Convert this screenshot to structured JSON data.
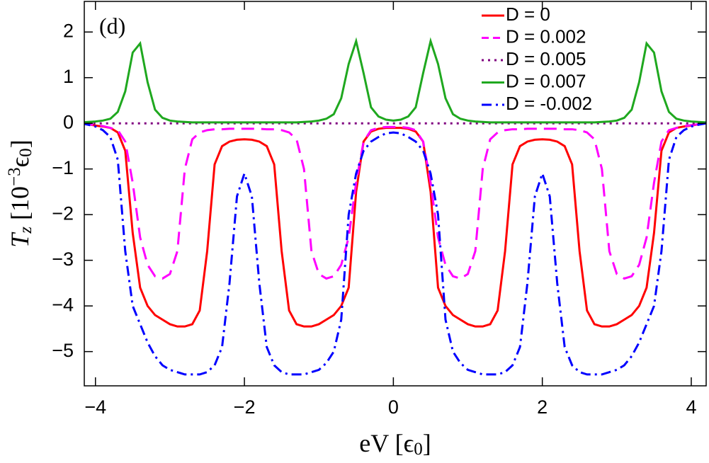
{
  "chart_data": {
    "type": "line",
    "annotation": "(d)",
    "xlabel": [
      {
        "text": "eV [ϵ"
      },
      {
        "text": "0",
        "script": "sub"
      },
      {
        "text": "]"
      }
    ],
    "ylabel": [
      {
        "text": "T",
        "italic": true
      },
      {
        "text": "z",
        "script": "sub",
        "italic": true
      },
      {
        "text": " [10"
      },
      {
        "text": "−3",
        "script": "sup"
      },
      {
        "text": "ϵ"
      },
      {
        "text": "0",
        "script": "sub"
      },
      {
        "text": "]"
      }
    ],
    "xlim": [
      -4.15,
      4.2
    ],
    "ylim": [
      -5.75,
      2.67
    ],
    "xticks": [
      {
        "value": -4,
        "label": "−4"
      },
      {
        "value": -2,
        "label": "−2"
      },
      0,
      2,
      4
    ],
    "yticks": [
      {
        "value": -5,
        "label": "−5"
      },
      {
        "value": -4,
        "label": "−4"
      },
      {
        "value": -3,
        "label": "−3"
      },
      {
        "value": -2,
        "label": "−2"
      },
      {
        "value": -1,
        "label": "−1"
      },
      0,
      1,
      2
    ],
    "legend": "upper right",
    "x": [
      -4.2,
      -4.1,
      -4.0,
      -3.9,
      -3.8,
      -3.7,
      -3.6,
      -3.5,
      -3.4,
      -3.3,
      -3.2,
      -3.1,
      -3.0,
      -2.9,
      -2.8,
      -2.7,
      -2.6,
      -2.5,
      -2.4,
      -2.3,
      -2.2,
      -2.1,
      -2.0,
      -1.9,
      -1.8,
      -1.7,
      -1.6,
      -1.5,
      -1.4,
      -1.3,
      -1.2,
      -1.1,
      -1.0,
      -0.9,
      -0.8,
      -0.7,
      -0.6,
      -0.5,
      -0.4,
      -0.3,
      -0.2,
      -0.1,
      0,
      0.1,
      0.2,
      0.3,
      0.4,
      0.5,
      0.6,
      0.7,
      0.8,
      0.9,
      1.0,
      1.1,
      1.2,
      1.3,
      1.4,
      1.5,
      1.6,
      1.7,
      1.8,
      1.9,
      2.0,
      2.1,
      2.2,
      2.3,
      2.4,
      2.5,
      2.6,
      2.7,
      2.8,
      2.9,
      3.0,
      3.1,
      3.2,
      3.3,
      3.4,
      3.5,
      3.6,
      3.7,
      3.8,
      3.9,
      4.0,
      4.1,
      4.2
    ],
    "series": [
      {
        "name": "D = 0",
        "color": "#ff0000",
        "style": "solid",
        "values": [
          0,
          -0.02,
          -0.05,
          -0.07,
          -0.1,
          -0.2,
          -0.6,
          -2.4,
          -3.6,
          -4.0,
          -4.2,
          -4.3,
          -4.4,
          -4.45,
          -4.45,
          -4.4,
          -4.1,
          -2.8,
          -0.9,
          -0.5,
          -0.4,
          -0.36,
          -0.35,
          -0.36,
          -0.4,
          -0.5,
          -0.9,
          -2.8,
          -4.1,
          -4.4,
          -4.45,
          -4.45,
          -4.4,
          -4.3,
          -4.2,
          -4.0,
          -3.6,
          -1.5,
          -0.4,
          -0.18,
          -0.12,
          -0.1,
          -0.1,
          -0.1,
          -0.12,
          -0.18,
          -0.4,
          -1.5,
          -3.6,
          -4.0,
          -4.2,
          -4.3,
          -4.4,
          -4.45,
          -4.45,
          -4.4,
          -4.1,
          -2.8,
          -0.9,
          -0.5,
          -0.4,
          -0.36,
          -0.35,
          -0.36,
          -0.4,
          -0.5,
          -0.9,
          -2.8,
          -4.1,
          -4.4,
          -4.45,
          -4.45,
          -4.4,
          -4.3,
          -4.2,
          -4.0,
          -3.6,
          -2.4,
          -0.6,
          -0.2,
          -0.1,
          -0.07,
          -0.05,
          -0.02,
          0
        ]
      },
      {
        "name": "D = 0.002",
        "color": "#ff00ff",
        "style": "dashed",
        "values": [
          0,
          -0.02,
          -0.04,
          -0.06,
          -0.1,
          -0.15,
          -0.4,
          -1.3,
          -2.5,
          -3.1,
          -3.35,
          -3.4,
          -3.3,
          -2.8,
          -1.0,
          -0.35,
          -0.2,
          -0.15,
          -0.13,
          -0.13,
          -0.12,
          -0.12,
          -0.12,
          -0.12,
          -0.12,
          -0.13,
          -0.13,
          -0.15,
          -0.2,
          -0.35,
          -1.0,
          -2.8,
          -3.3,
          -3.4,
          -3.35,
          -3.1,
          -2.5,
          -1.3,
          -0.4,
          -0.15,
          -0.1,
          -0.08,
          -0.08,
          -0.08,
          -0.1,
          -0.15,
          -0.4,
          -1.3,
          -2.5,
          -3.1,
          -3.35,
          -3.4,
          -3.3,
          -2.8,
          -1.0,
          -0.35,
          -0.2,
          -0.15,
          -0.13,
          -0.13,
          -0.12,
          -0.12,
          -0.12,
          -0.12,
          -0.12,
          -0.13,
          -0.13,
          -0.15,
          -0.2,
          -0.35,
          -1.0,
          -2.8,
          -3.3,
          -3.4,
          -3.35,
          -3.1,
          -2.5,
          -1.3,
          -0.4,
          -0.15,
          -0.1,
          -0.06,
          -0.04,
          -0.02,
          0
        ]
      },
      {
        "name": "D = 0.005",
        "color": "#800080",
        "style": "dotted",
        "values": [
          0,
          0,
          0,
          0,
          0,
          0,
          0,
          0,
          0,
          0,
          0,
          0,
          0,
          0,
          0,
          0,
          0,
          0,
          0,
          0,
          0,
          0,
          0,
          0,
          0,
          0,
          0,
          0,
          0,
          0,
          0,
          0,
          0,
          0,
          0,
          0,
          0,
          0,
          0,
          0,
          0,
          0,
          0,
          0,
          0,
          0,
          0,
          0,
          0,
          0,
          0,
          0,
          0,
          0,
          0,
          0,
          0,
          0,
          0,
          0,
          0,
          0,
          0,
          0,
          0,
          0,
          0,
          0,
          0,
          0,
          0,
          0,
          0,
          0,
          0,
          0,
          0,
          0,
          0,
          0,
          0,
          0,
          0,
          0,
          0
        ]
      },
      {
        "name": "D = 0.007",
        "color": "#1fa81f",
        "style": "solid",
        "values": [
          0.02,
          0.03,
          0.04,
          0.06,
          0.1,
          0.25,
          0.7,
          1.55,
          1.75,
          0.9,
          0.3,
          0.12,
          0.06,
          0.04,
          0.03,
          0.02,
          0.02,
          0.02,
          0.02,
          0.02,
          0.02,
          0.02,
          0.02,
          0.02,
          0.02,
          0.02,
          0.02,
          0.02,
          0.02,
          0.02,
          0.03,
          0.04,
          0.06,
          0.1,
          0.2,
          0.55,
          1.3,
          1.8,
          1.1,
          0.35,
          0.15,
          0.08,
          0.06,
          0.08,
          0.15,
          0.35,
          1.1,
          1.8,
          1.3,
          0.55,
          0.2,
          0.1,
          0.06,
          0.04,
          0.03,
          0.02,
          0.02,
          0.02,
          0.02,
          0.02,
          0.02,
          0.02,
          0.02,
          0.02,
          0.02,
          0.02,
          0.02,
          0.02,
          0.02,
          0.02,
          0.03,
          0.04,
          0.06,
          0.12,
          0.3,
          0.9,
          1.75,
          1.55,
          0.7,
          0.25,
          0.1,
          0.06,
          0.04,
          0.03,
          0.02
        ]
      },
      {
        "name": "D = -0.002",
        "color": "#0000ff",
        "style": "dashdot",
        "values": [
          0,
          -0.03,
          -0.07,
          -0.15,
          -0.3,
          -0.8,
          -2.8,
          -4.0,
          -4.4,
          -4.8,
          -5.1,
          -5.3,
          -5.4,
          -5.45,
          -5.5,
          -5.5,
          -5.5,
          -5.45,
          -5.3,
          -4.9,
          -3.5,
          -1.6,
          -1.1,
          -1.6,
          -3.5,
          -4.9,
          -5.3,
          -5.45,
          -5.5,
          -5.5,
          -5.5,
          -5.45,
          -5.4,
          -5.25,
          -5.0,
          -4.3,
          -2.0,
          -1.1,
          -0.6,
          -0.4,
          -0.3,
          -0.22,
          -0.2,
          -0.22,
          -0.3,
          -0.4,
          -0.6,
          -1.1,
          -2.0,
          -4.3,
          -5.0,
          -5.25,
          -5.4,
          -5.45,
          -5.5,
          -5.5,
          -5.5,
          -5.45,
          -5.3,
          -4.9,
          -3.5,
          -1.6,
          -1.1,
          -1.6,
          -3.5,
          -4.9,
          -5.3,
          -5.45,
          -5.5,
          -5.5,
          -5.5,
          -5.45,
          -5.4,
          -5.3,
          -5.1,
          -4.8,
          -4.4,
          -4.0,
          -2.8,
          -0.8,
          -0.3,
          -0.15,
          -0.07,
          -0.03,
          0
        ]
      }
    ]
  }
}
